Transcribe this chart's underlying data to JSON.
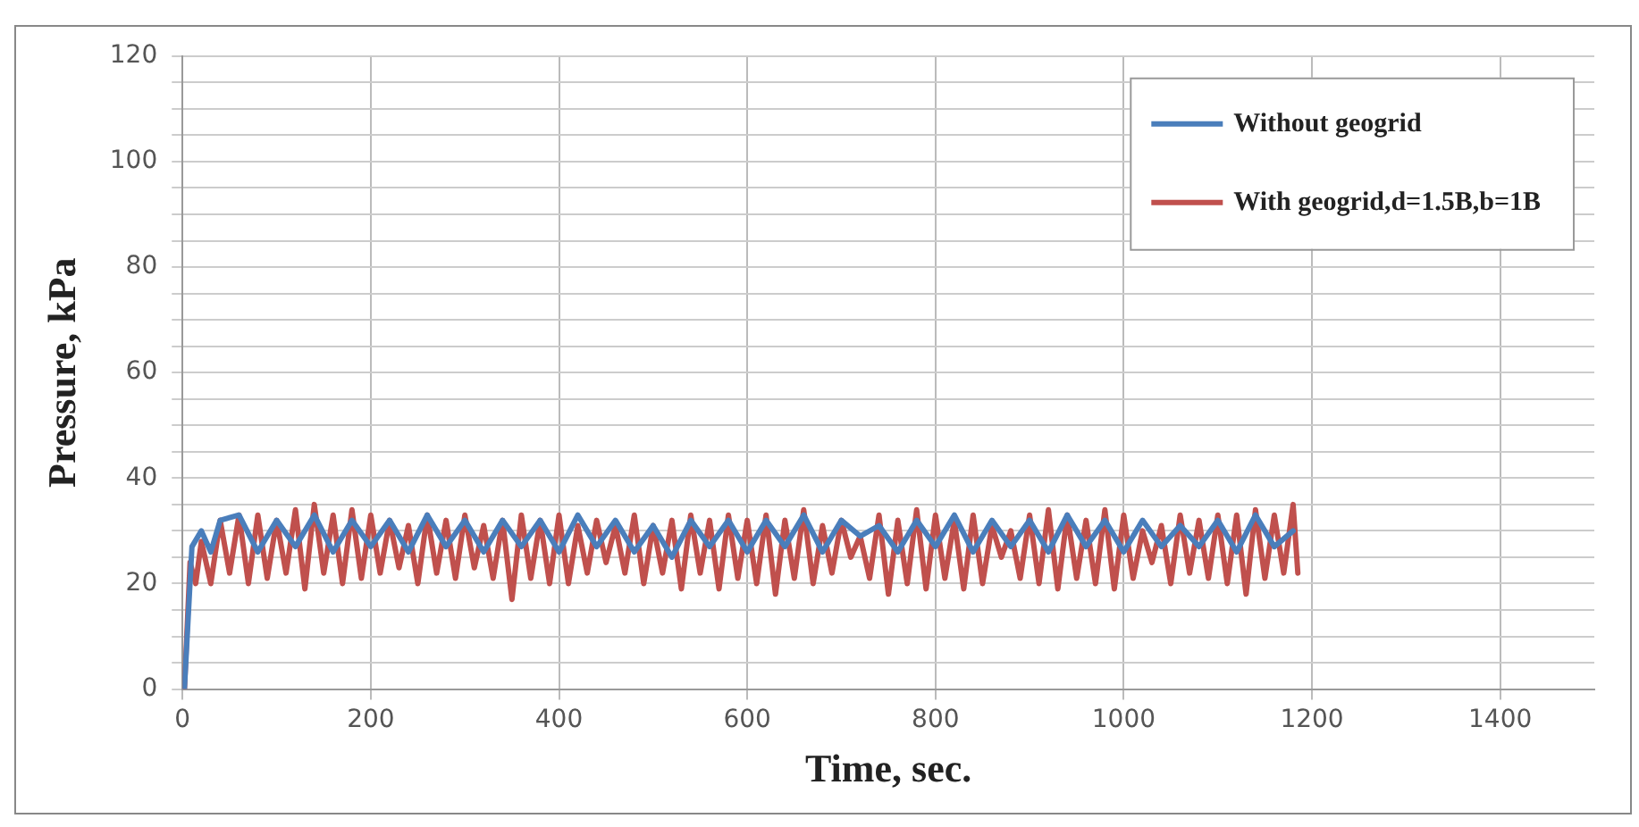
{
  "chart_data": {
    "type": "line",
    "xlabel": "Time, sec.",
    "ylabel": "Pressure, kPa",
    "xlim": [
      0,
      1500
    ],
    "xticks": [
      0,
      200,
      400,
      600,
      800,
      1000,
      1200,
      1400
    ],
    "ylim": [
      0,
      120
    ],
    "yticks": [
      0,
      {
        "value": 5,
        "label": null
      },
      {
        "value": 10,
        "label": null
      },
      {
        "value": 15,
        "label": null
      },
      20,
      {
        "value": 25,
        "label": null
      },
      {
        "value": 30,
        "label": null
      },
      {
        "value": 35,
        "label": null
      },
      40,
      {
        "value": 45,
        "label": null
      },
      {
        "value": 50,
        "label": null
      },
      {
        "value": 55,
        "label": null
      },
      60,
      {
        "value": 65,
        "label": null
      },
      {
        "value": 70,
        "label": null
      },
      {
        "value": 75,
        "label": null
      },
      80,
      {
        "value": 85,
        "label": null
      },
      {
        "value": 90,
        "label": null
      },
      {
        "value": 95,
        "label": null
      },
      100,
      {
        "value": 105,
        "label": null
      },
      {
        "value": 110,
        "label": null
      },
      {
        "value": 115,
        "label": null
      },
      120
    ],
    "grid": true,
    "legend": "top right",
    "marker": "none",
    "line_style": "solid",
    "series": [
      {
        "name": "Without geogrid",
        "color": "#4a7ebb",
        "x": [
          2,
          10,
          20,
          30,
          40,
          60,
          80,
          100,
          120,
          140,
          160,
          180,
          200,
          220,
          240,
          260,
          280,
          300,
          320,
          340,
          360,
          380,
          400,
          420,
          440,
          460,
          480,
          500,
          520,
          540,
          560,
          580,
          600,
          620,
          640,
          660,
          680,
          700,
          720,
          740,
          760,
          780,
          800,
          820,
          840,
          860,
          880,
          900,
          920,
          940,
          960,
          980,
          1000,
          1020,
          1040,
          1060,
          1080,
          1100,
          1120,
          1140,
          1160,
          1180
        ],
        "values": [
          0,
          27,
          30,
          26,
          32,
          33,
          26,
          32,
          27,
          33,
          26,
          32,
          27,
          32,
          26,
          33,
          27,
          32,
          26,
          32,
          27,
          32,
          26,
          33,
          27,
          32,
          26,
          31,
          25,
          32,
          27,
          32,
          26,
          32,
          27,
          33,
          26,
          32,
          29,
          31,
          26,
          32,
          27,
          33,
          26,
          32,
          27,
          32,
          26,
          33,
          27,
          32,
          26,
          32,
          27,
          31,
          27,
          32,
          26,
          33,
          27,
          30
        ]
      },
      {
        "name": "With geogrid,d=1.5B,b=1B",
        "color": "#c0504d",
        "x": [
          2,
          8,
          14,
          20,
          30,
          40,
          50,
          60,
          70,
          80,
          90,
          100,
          110,
          120,
          130,
          140,
          150,
          160,
          170,
          180,
          190,
          200,
          210,
          220,
          230,
          240,
          250,
          260,
          270,
          280,
          290,
          300,
          310,
          320,
          330,
          340,
          350,
          360,
          370,
          380,
          390,
          400,
          410,
          420,
          430,
          440,
          450,
          460,
          470,
          480,
          490,
          500,
          510,
          520,
          530,
          540,
          550,
          560,
          570,
          580,
          590,
          600,
          610,
          620,
          630,
          640,
          650,
          660,
          670,
          680,
          690,
          700,
          710,
          720,
          730,
          740,
          750,
          760,
          770,
          780,
          790,
          800,
          810,
          820,
          830,
          840,
          850,
          860,
          870,
          880,
          890,
          900,
          910,
          920,
          930,
          940,
          950,
          960,
          970,
          980,
          990,
          1000,
          1010,
          1020,
          1030,
          1040,
          1050,
          1060,
          1070,
          1080,
          1090,
          1100,
          1110,
          1120,
          1130,
          1140,
          1150,
          1160,
          1170,
          1180,
          1185
        ],
        "values": [
          0,
          24,
          20,
          28,
          20,
          32,
          22,
          33,
          20,
          33,
          21,
          32,
          22,
          34,
          19,
          35,
          22,
          33,
          20,
          34,
          21,
          33,
          22,
          32,
          23,
          31,
          20,
          33,
          22,
          32,
          21,
          33,
          23,
          31,
          21,
          32,
          17,
          33,
          21,
          32,
          20,
          33,
          20,
          31,
          22,
          32,
          24,
          31,
          22,
          33,
          20,
          31,
          22,
          32,
          19,
          33,
          22,
          32,
          19,
          33,
          21,
          32,
          20,
          33,
          18,
          32,
          21,
          34,
          20,
          31,
          22,
          32,
          25,
          29,
          21,
          33,
          18,
          32,
          20,
          34,
          19,
          33,
          21,
          32,
          19,
          33,
          20,
          31,
          25,
          30,
          21,
          33,
          20,
          34,
          19,
          33,
          21,
          32,
          20,
          34,
          19,
          33,
          21,
          30,
          24,
          31,
          20,
          33,
          22,
          32,
          21,
          33,
          20,
          33,
          18,
          34,
          21,
          33,
          22,
          35,
          22
        ]
      }
    ]
  }
}
